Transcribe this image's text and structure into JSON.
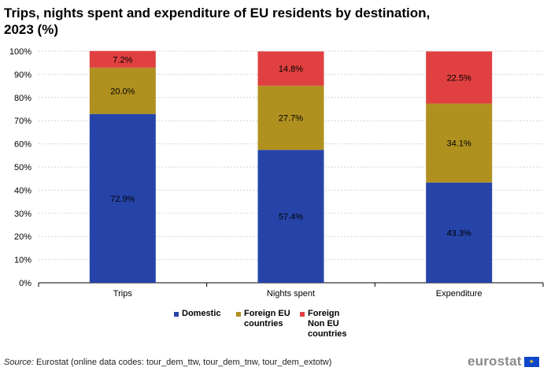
{
  "title": "Trips, nights spent and expenditure of EU residents by destination, 2023 (%)",
  "chart_data": {
    "type": "bar",
    "stacked": true,
    "categories": [
      "Trips",
      "Nights spent",
      "Expenditure"
    ],
    "series": [
      {
        "name": "Domestic",
        "color": "#2644a8",
        "values": [
          72.9,
          57.4,
          43.3
        ]
      },
      {
        "name": "Foreign EU countries",
        "color": "#b09120",
        "values": [
          20.0,
          27.7,
          34.1
        ]
      },
      {
        "name": "Foreign Non EU countries",
        "color": "#e04040",
        "values": [
          7.2,
          14.8,
          22.5
        ]
      }
    ],
    "data_labels": [
      [
        "72.9%",
        "57.4%",
        "43.3%"
      ],
      [
        "20.0%",
        "27.7%",
        "34.1%"
      ],
      [
        "7.2%",
        "14.8%",
        "22.5%"
      ]
    ],
    "yticks": [
      "0%",
      "10%",
      "20%",
      "30%",
      "40%",
      "50%",
      "60%",
      "70%",
      "80%",
      "90%",
      "100%"
    ],
    "ylim": [
      0,
      100
    ],
    "grid": true,
    "xlabel": "",
    "ylabel": ""
  },
  "legend": {
    "items": [
      {
        "label": "Domestic",
        "color": "#2644a8"
      },
      {
        "label": "Foreign EU countries",
        "color": "#b09120"
      },
      {
        "label": "Foreign Non EU countries",
        "color": "#e04040"
      }
    ]
  },
  "source": {
    "prefix": "Source:",
    "text": " Eurostat (online data codes: tour_dem_ttw, tour_dem_tnw, tour_dem_extotw)"
  },
  "logo": {
    "text": "eurostat",
    "flag_glyph": "★"
  }
}
